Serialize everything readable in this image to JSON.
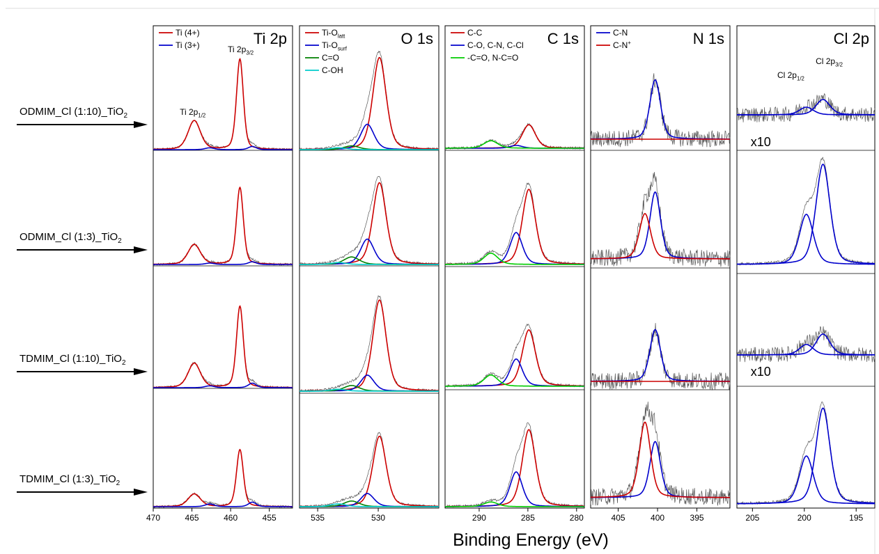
{
  "figure": {
    "xlabel": "Binding Energy (eV)",
    "samples": [
      {
        "label": "ODMIM_Cl (1:10)_TiO",
        "sub": "2"
      },
      {
        "label": "ODMIM_Cl (1:3)_TiO",
        "sub": "2"
      },
      {
        "label": "TDMIM_Cl (1:10)_TiO",
        "sub": "2"
      },
      {
        "label": "TDMIM_Cl (1:3)_TiO",
        "sub": "2"
      }
    ]
  },
  "chart_data": [
    {
      "type": "line",
      "title": "Ti 2p",
      "xlabel": "Binding Energy (eV)",
      "xlim": [
        470,
        452
      ],
      "x_reversed": true,
      "xticks": [
        470,
        465,
        460,
        455
      ],
      "legend_position": "top-left",
      "legend": [
        {
          "label": "Ti (4+)",
          "color": "#cc0000"
        },
        {
          "label": "Ti (3+)",
          "color": "#0000cc"
        }
      ],
      "annotations": [
        {
          "text": "Ti 2p",
          "sub": "1/2",
          "x": 464.9,
          "row": 0
        },
        {
          "text": "Ti 2p",
          "sub": "3/2",
          "x": 458.7,
          "row": 0
        }
      ],
      "components": [
        {
          "name": "Ti (4+)",
          "color": "#cc0000",
          "peaks": [
            {
              "center": 464.7,
              "fwhm": 1.9,
              "heights": [
                0.32,
                0.22,
                0.27,
                0.14
              ]
            },
            {
              "center": 458.8,
              "fwhm": 1.05,
              "heights": [
                1.0,
                0.85,
                0.9,
                0.63
              ]
            }
          ]
        },
        {
          "name": "Ti (3+)",
          "color": "#0000cc",
          "peaks": [
            {
              "center": 462.7,
              "fwhm": 1.4,
              "heights": [
                0.02,
                0.015,
                0.02,
                0.03
              ]
            },
            {
              "center": 457.2,
              "fwhm": 1.2,
              "heights": [
                0.035,
                0.03,
                0.05,
                0.05
              ]
            }
          ]
        }
      ]
    },
    {
      "type": "line",
      "title": "O 1s",
      "xlabel": "Binding Energy (eV)",
      "xlim": [
        536.5,
        525
      ],
      "x_reversed": true,
      "xticks": [
        535,
        530
      ],
      "legend_position": "top-left",
      "legend": [
        {
          "label": "Ti-O",
          "sub": "latt",
          "color": "#cc0000"
        },
        {
          "label": "Ti-O",
          "sub": "surf",
          "color": "#0000cc"
        },
        {
          "label": "C=O",
          "color": "#008000"
        },
        {
          "label": "C-OH",
          "color": "#00cccc"
        }
      ],
      "components": [
        {
          "name": "Ti-O latt",
          "color": "#cc0000",
          "peaks": [
            {
              "center": 529.9,
              "fwhm": 1.3,
              "heights": [
                0.98,
                0.87,
                0.97,
                0.75
              ]
            }
          ]
        },
        {
          "name": "Ti-O surf",
          "color": "#0000cc",
          "peaks": [
            {
              "center": 530.9,
              "fwhm": 1.3,
              "heights": [
                0.27,
                0.27,
                0.17,
                0.14
              ]
            }
          ]
        },
        {
          "name": "C=O",
          "color": "#008000",
          "peaks": [
            {
              "center": 532.2,
              "fwhm": 1.5,
              "heights": [
                0.04,
                0.08,
                0.06,
                0.06
              ]
            }
          ]
        },
        {
          "name": "C-OH",
          "color": "#00cccc",
          "peaks": [
            {
              "center": 533.3,
              "fwhm": 1.5,
              "heights": [
                0.02,
                0.02,
                0.02,
                0.03
              ]
            }
          ]
        }
      ]
    },
    {
      "type": "line",
      "title": "C 1s",
      "xlabel": "Binding Energy (eV)",
      "xlim": [
        293.5,
        279.2
      ],
      "x_reversed": true,
      "xticks": [
        290,
        285,
        280
      ],
      "legend_position": "top-left",
      "legend": [
        {
          "label": "C-C",
          "color": "#cc0000"
        },
        {
          "label": "C-O, C-N, C-Cl",
          "color": "#0000cc"
        },
        {
          "label": "-C=O, N-C=O",
          "color": "#00cc00"
        }
      ],
      "components": [
        {
          "name": "C-C",
          "color": "#cc0000",
          "peaks": [
            {
              "center": 284.9,
              "fwhm": 1.6,
              "heights": [
                0.25,
                0.8,
                0.6,
                0.82
              ]
            }
          ]
        },
        {
          "name": "C-O, C-N, C-Cl",
          "color": "#0000cc",
          "peaks": [
            {
              "center": 286.2,
              "fwhm": 1.5,
              "heights": [
                0.03,
                0.34,
                0.29,
                0.37
              ]
            }
          ]
        },
        {
          "name": "-C=O, N-C=O",
          "color": "#00cc00",
          "peaks": [
            {
              "center": 288.8,
              "fwhm": 1.7,
              "heights": [
                0.08,
                0.12,
                0.12,
                0.05
              ]
            }
          ]
        }
      ]
    },
    {
      "type": "line",
      "title": "N 1s",
      "xlabel": "Binding Energy (eV)",
      "xlim": [
        408.5,
        390.8
      ],
      "x_reversed": true,
      "xticks": [
        405,
        400,
        395
      ],
      "legend_position": "top-left",
      "legend": [
        {
          "label": "C-N",
          "color": "#0000cc"
        },
        {
          "label": "C-N",
          "sup": "+",
          "color": "#cc0000"
        }
      ],
      "components": [
        {
          "name": "C-N",
          "color": "#0000cc",
          "peaks": [
            {
              "center": 400.3,
              "fwhm": 1.6,
              "heights": [
                0.55,
                0.62,
                0.48,
                0.52
              ]
            }
          ]
        },
        {
          "name": "C-N+",
          "color": "#cc0000",
          "peaks": [
            {
              "center": 401.6,
              "fwhm": 1.7,
              "heights": [
                0,
                0.42,
                0,
                0.7
              ]
            }
          ]
        }
      ]
    },
    {
      "type": "line",
      "title": "Cl 2p",
      "xlabel": "Binding Energy (eV)",
      "xlim": [
        206.5,
        193.2
      ],
      "x_reversed": true,
      "xticks": [
        205,
        200,
        195
      ],
      "annotations": [
        {
          "text": "Cl 2p",
          "sub": "3/2",
          "x": 197.6,
          "row": 0
        },
        {
          "text": "Cl 2p",
          "sub": "1/2",
          "x": 201.3,
          "row": 0
        },
        {
          "text": "x10",
          "x": 204.2,
          "row": 0
        },
        {
          "text": "x10",
          "x": 204.2,
          "row": 2
        }
      ],
      "components": [
        {
          "name": "Cl 2p 3/2",
          "color": "#0000cc",
          "peaks": [
            {
              "center": 198.2,
              "fwhm": 1.6,
              "heights": [
                0.22,
                0.9,
                0.3,
                0.86
              ]
            }
          ]
        },
        {
          "name": "Cl 2p 1/2",
          "color": "#0000cc",
          "peaks": [
            {
              "center": 199.8,
              "fwhm": 1.6,
              "heights": [
                0.11,
                0.45,
                0.15,
                0.43
              ]
            }
          ]
        }
      ]
    }
  ]
}
